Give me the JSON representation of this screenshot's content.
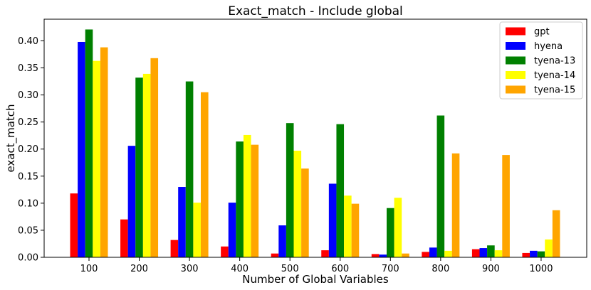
{
  "chart_data": {
    "type": "bar",
    "title": "Exact_match - Include global",
    "xlabel": "Number of Global Variables",
    "ylabel": "exact_match",
    "categories": [
      "100",
      "200",
      "300",
      "400",
      "500",
      "600",
      "700",
      "800",
      "900",
      "1000"
    ],
    "ylim": [
      0,
      0.44
    ],
    "yticks": [
      "0.00",
      "0.05",
      "0.10",
      "0.15",
      "0.20",
      "0.25",
      "0.30",
      "0.35",
      "0.40"
    ],
    "legend_position": "top-right",
    "grid": false,
    "series": [
      {
        "name": "gpt",
        "color": "#ff0000",
        "values": [
          0.118,
          0.07,
          0.032,
          0.02,
          0.007,
          0.013,
          0.006,
          0.01,
          0.015,
          0.008
        ]
      },
      {
        "name": "hyena",
        "color": "#0000ff",
        "values": [
          0.398,
          0.206,
          0.13,
          0.101,
          0.059,
          0.136,
          0.005,
          0.018,
          0.017,
          0.012
        ]
      },
      {
        "name": "tyena-13",
        "color": "#008000",
        "values": [
          0.421,
          0.332,
          0.325,
          0.214,
          0.248,
          0.246,
          0.091,
          0.262,
          0.022,
          0.011
        ]
      },
      {
        "name": "tyena-14",
        "color": "#ffff00",
        "values": [
          0.363,
          0.339,
          0.101,
          0.226,
          0.197,
          0.114,
          0.11,
          0.012,
          0.013,
          0.033
        ]
      },
      {
        "name": "tyena-15",
        "color": "#ffa500",
        "values": [
          0.388,
          0.368,
          0.305,
          0.208,
          0.164,
          0.099,
          0.007,
          0.192,
          0.189,
          0.087
        ]
      }
    ]
  }
}
